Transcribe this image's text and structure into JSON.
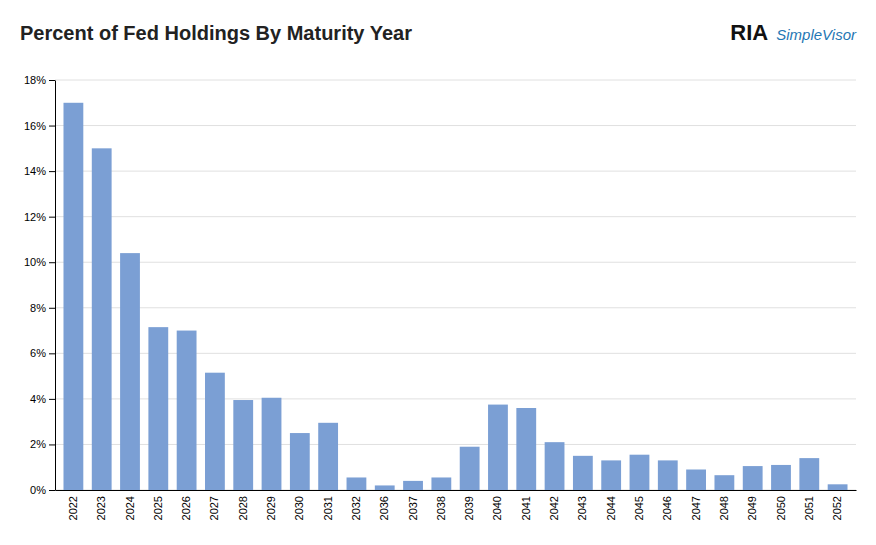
{
  "chart_data": {
    "type": "bar",
    "title": "Percent of Fed Holdings By Maturity Year",
    "categories": [
      "2022",
      "2023",
      "2024",
      "2025",
      "2026",
      "2027",
      "2028",
      "2029",
      "2030",
      "2031",
      "2032",
      "2036",
      "2037",
      "2038",
      "2039",
      "2040",
      "2041",
      "2042",
      "2043",
      "2044",
      "2045",
      "2046",
      "2047",
      "2048",
      "2049",
      "2050",
      "2051",
      "2052"
    ],
    "values": [
      17.0,
      15.0,
      10.4,
      7.15,
      7.0,
      5.15,
      3.95,
      4.05,
      2.5,
      2.95,
      0.55,
      0.2,
      0.4,
      0.55,
      1.9,
      3.75,
      3.6,
      2.1,
      1.5,
      1.3,
      1.55,
      1.3,
      0.9,
      0.65,
      1.05,
      1.1,
      1.4,
      0.25
    ],
    "color": "#7b9fd4",
    "ylim": [
      0,
      18
    ],
    "yticks": [
      {
        "value": 0,
        "label": "0%"
      },
      {
        "value": 2,
        "label": "2%"
      },
      {
        "value": 4,
        "label": "4%"
      },
      {
        "value": 6,
        "label": "6%"
      },
      {
        "value": 8,
        "label": "8%"
      },
      {
        "value": 10,
        "label": "10%"
      },
      {
        "value": 12,
        "label": "12%"
      },
      {
        "value": 14,
        "label": "14%"
      },
      {
        "value": 16,
        "label": "16%"
      },
      {
        "value": 18,
        "label": "18%"
      }
    ],
    "grid": true,
    "annotations": [
      "RIA",
      "SimpleVisor"
    ]
  }
}
